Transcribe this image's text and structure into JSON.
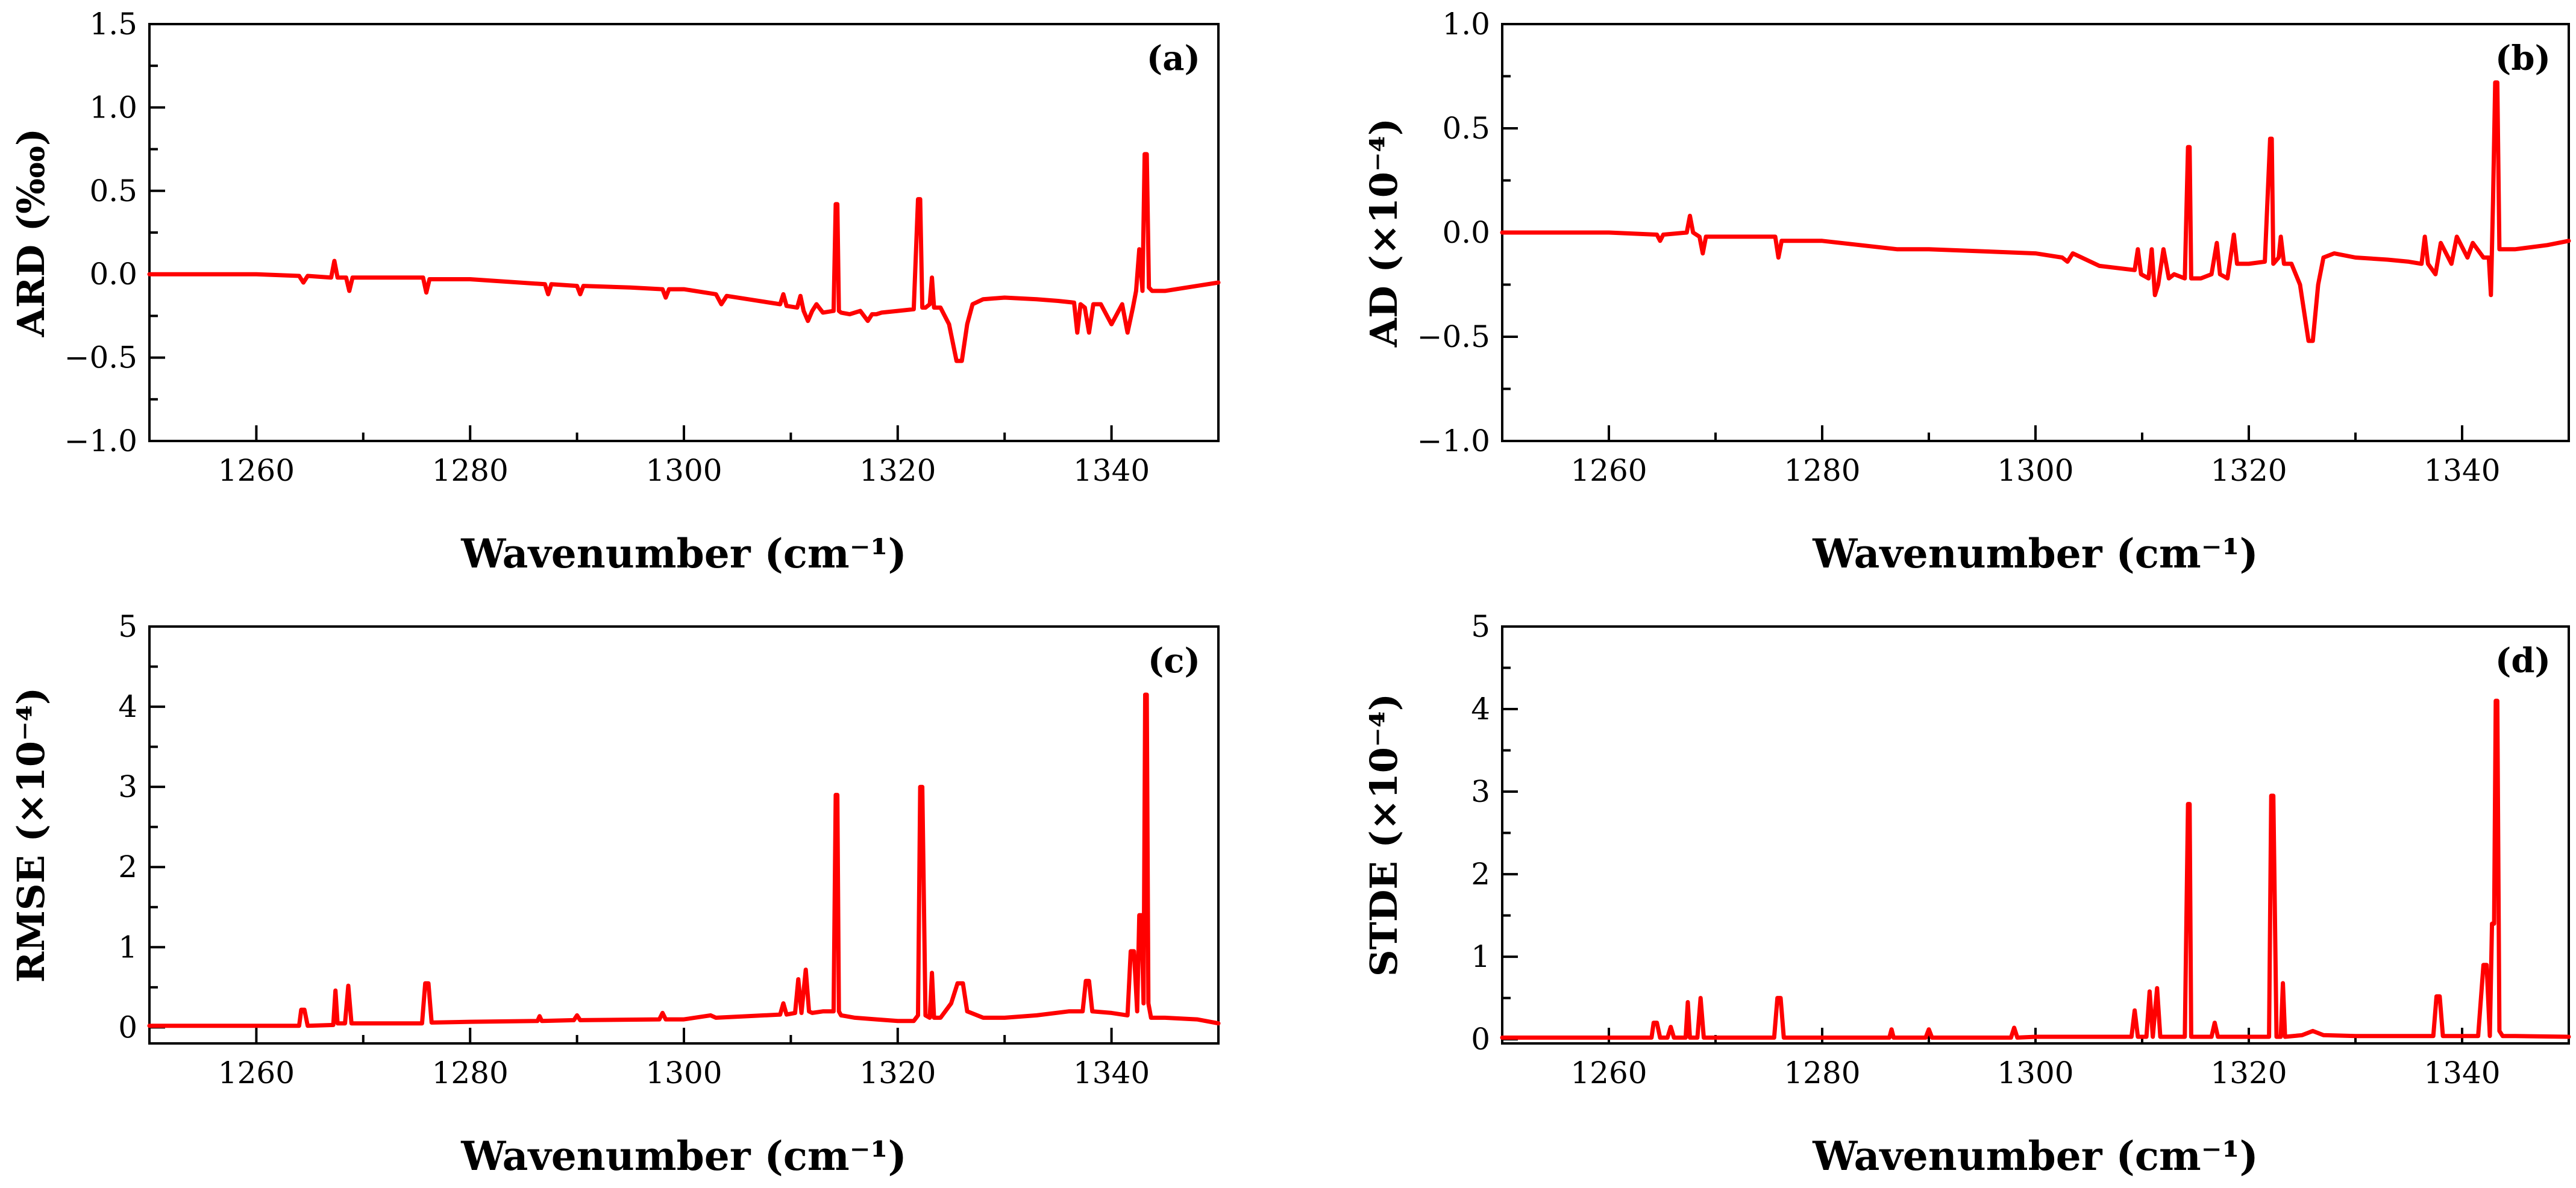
{
  "chart_data": [
    {
      "panel": "(a)",
      "type": "line",
      "ylabel": "ARD (‱)",
      "xlabel": "Wavenumber (cm⁻¹)",
      "xlim": [
        1250,
        1350
      ],
      "ylim": [
        -1.0,
        1.5
      ],
      "xticks": [
        1260,
        1280,
        1300,
        1320,
        1340
      ],
      "xtick_labels": [
        "1260",
        "1280",
        "1300",
        "1320",
        "1340"
      ],
      "yticks": [
        -1.0,
        -0.5,
        0.0,
        0.5,
        1.0,
        1.5
      ],
      "ytick_labels": [
        "−1.0",
        "−0.5",
        "0.0",
        "0.5",
        "1.0",
        "1.5"
      ],
      "color": "#ff0000",
      "series": [
        {
          "name": "ARD",
          "x": [
            1250,
            1260,
            1264,
            1264.4,
            1264.8,
            1267,
            1267.3,
            1267.6,
            1268.4,
            1268.7,
            1269,
            1275.6,
            1275.9,
            1276.2,
            1280,
            1287,
            1287.3,
            1287.6,
            1290,
            1290.3,
            1290.6,
            1295,
            1298,
            1298.3,
            1298.6,
            1300,
            1303,
            1303.5,
            1304,
            1306,
            1309,
            1309.3,
            1309.6,
            1310.6,
            1310.9,
            1311.2,
            1311.6,
            1312,
            1312.4,
            1313,
            1314,
            1314.2,
            1314.35,
            1314.5,
            1314.7,
            1315.5,
            1316.5,
            1317.2,
            1317.6,
            1318,
            1318.5,
            1320,
            1321.5,
            1321.9,
            1322.1,
            1322.3,
            1322.6,
            1323,
            1323.2,
            1323.4,
            1324,
            1324.8,
            1325.5,
            1326,
            1326.5,
            1327,
            1328,
            1330,
            1333,
            1335,
            1336.5,
            1336.8,
            1337.1,
            1337.5,
            1337.9,
            1338.3,
            1339,
            1340,
            1341,
            1341.5,
            1342,
            1342.3,
            1342.6,
            1342.9,
            1343.1,
            1343.3,
            1343.5,
            1343.8,
            1345,
            1348,
            1350
          ],
          "y": [
            0.0,
            0.0,
            -0.01,
            -0.05,
            -0.01,
            -0.02,
            0.08,
            -0.02,
            -0.02,
            -0.1,
            -0.02,
            -0.02,
            -0.11,
            -0.03,
            -0.03,
            -0.06,
            -0.12,
            -0.06,
            -0.07,
            -0.12,
            -0.07,
            -0.08,
            -0.09,
            -0.14,
            -0.09,
            -0.09,
            -0.12,
            -0.18,
            -0.13,
            -0.15,
            -0.18,
            -0.12,
            -0.19,
            -0.2,
            -0.13,
            -0.22,
            -0.28,
            -0.22,
            -0.18,
            -0.23,
            -0.22,
            0.42,
            0.42,
            -0.22,
            -0.23,
            -0.24,
            -0.22,
            -0.28,
            -0.24,
            -0.24,
            -0.23,
            -0.22,
            -0.21,
            0.45,
            0.45,
            -0.2,
            -0.2,
            -0.18,
            -0.02,
            -0.2,
            -0.2,
            -0.3,
            -0.52,
            -0.52,
            -0.3,
            -0.18,
            -0.15,
            -0.14,
            -0.15,
            -0.16,
            -0.17,
            -0.35,
            -0.18,
            -0.2,
            -0.35,
            -0.18,
            -0.18,
            -0.3,
            -0.18,
            -0.35,
            -0.2,
            -0.1,
            0.15,
            -0.1,
            0.72,
            0.72,
            -0.08,
            -0.1,
            -0.1,
            -0.07,
            -0.05
          ]
        }
      ]
    },
    {
      "panel": "(b)",
      "type": "line",
      "ylabel": "AD (×10⁻⁴)",
      "xlabel": "Wavenumber (cm⁻¹)",
      "xlim": [
        1250,
        1350
      ],
      "ylim": [
        -1.0,
        1.0
      ],
      "xticks": [
        1260,
        1280,
        1300,
        1320,
        1340
      ],
      "xtick_labels": [
        "1260",
        "1280",
        "1300",
        "1320",
        "1340"
      ],
      "yticks": [
        -1.0,
        -0.5,
        0.0,
        0.5,
        1.0
      ],
      "ytick_labels": [
        "−1.0",
        "−0.5",
        "0.0",
        "0.5",
        "1.0"
      ],
      "color": "#ff0000",
      "series": [
        {
          "name": "AD",
          "x": [
            1250,
            1260,
            1264.5,
            1264.8,
            1265.1,
            1267.3,
            1267.6,
            1267.9,
            1268.5,
            1268.8,
            1269.1,
            1275.6,
            1275.9,
            1276.2,
            1280,
            1287,
            1290,
            1295,
            1300,
            1302.5,
            1303,
            1303.5,
            1306,
            1309.3,
            1309.6,
            1309.9,
            1310.6,
            1310.9,
            1311.2,
            1311.5,
            1312,
            1312.5,
            1313,
            1314,
            1314.3,
            1314.45,
            1314.6,
            1315.5,
            1316.5,
            1317,
            1317.3,
            1318,
            1318.6,
            1318.9,
            1320,
            1321.5,
            1322,
            1322.15,
            1322.3,
            1322.8,
            1323,
            1323.3,
            1324,
            1324.8,
            1325.6,
            1326,
            1326.5,
            1327,
            1328,
            1330,
            1333,
            1335,
            1336.2,
            1336.5,
            1336.8,
            1337.5,
            1338,
            1339,
            1339.5,
            1340.5,
            1341,
            1342,
            1342.5,
            1342.7,
            1342.9,
            1343.1,
            1343.3,
            1343.5,
            1343.8,
            1345,
            1348,
            1350
          ],
          "y": [
            0.0,
            0.0,
            -0.01,
            -0.04,
            -0.01,
            0.0,
            0.08,
            0.0,
            -0.02,
            -0.1,
            -0.02,
            -0.02,
            -0.12,
            -0.04,
            -0.04,
            -0.08,
            -0.08,
            -0.09,
            -0.1,
            -0.12,
            -0.14,
            -0.1,
            -0.16,
            -0.18,
            -0.08,
            -0.2,
            -0.22,
            -0.08,
            -0.3,
            -0.25,
            -0.08,
            -0.22,
            -0.2,
            -0.22,
            0.41,
            0.41,
            -0.22,
            -0.22,
            -0.2,
            -0.05,
            -0.2,
            -0.22,
            -0.01,
            -0.15,
            -0.15,
            -0.14,
            0.45,
            0.45,
            -0.15,
            -0.12,
            -0.02,
            -0.15,
            -0.15,
            -0.25,
            -0.52,
            -0.52,
            -0.25,
            -0.12,
            -0.1,
            -0.12,
            -0.13,
            -0.14,
            -0.15,
            -0.02,
            -0.15,
            -0.2,
            -0.05,
            -0.15,
            -0.02,
            -0.12,
            -0.05,
            -0.12,
            -0.12,
            -0.3,
            0.15,
            0.72,
            0.72,
            -0.08,
            -0.08,
            -0.08,
            -0.06,
            -0.04
          ]
        }
      ]
    },
    {
      "panel": "(c)",
      "type": "line",
      "ylabel": "RMSE (×10⁻⁴)",
      "xlabel": "Wavenumber (cm⁻¹)",
      "xlim": [
        1250,
        1350
      ],
      "ylim": [
        -0.2,
        5
      ],
      "xticks": [
        1260,
        1280,
        1300,
        1320,
        1340
      ],
      "xtick_labels": [
        "1260",
        "1280",
        "1300",
        "1320",
        "1340"
      ],
      "yticks": [
        0,
        1,
        2,
        3,
        4,
        5
      ],
      "ytick_labels": [
        "0",
        "1",
        "2",
        "3",
        "4",
        "5"
      ],
      "color": "#ff0000",
      "series": [
        {
          "name": "RMSE",
          "x": [
            1250,
            1264,
            1264.2,
            1264.5,
            1264.8,
            1267.2,
            1267.4,
            1267.6,
            1268.3,
            1268.6,
            1268.9,
            1275.5,
            1275.8,
            1276.1,
            1276.4,
            1280,
            1286.3,
            1286.5,
            1286.7,
            1289.7,
            1290,
            1290.3,
            1297.7,
            1298,
            1298.3,
            1300,
            1302.5,
            1303,
            1306,
            1309,
            1309.3,
            1309.6,
            1310.4,
            1310.7,
            1311,
            1311.4,
            1311.7,
            1312,
            1313,
            1314,
            1314.2,
            1314.35,
            1314.5,
            1314.7,
            1316,
            1318,
            1320,
            1321.5,
            1321.9,
            1322.1,
            1322.3,
            1322.6,
            1323,
            1323.2,
            1323.4,
            1324,
            1325,
            1325.6,
            1326.1,
            1326.5,
            1328,
            1330,
            1333,
            1336,
            1337.3,
            1337.6,
            1337.9,
            1338.2,
            1340,
            1341.5,
            1341.8,
            1342.1,
            1342.4,
            1342.6,
            1342.8,
            1343,
            1343.15,
            1343.3,
            1343.45,
            1343.7,
            1345,
            1348,
            1350
          ],
          "y": [
            0.02,
            0.02,
            0.22,
            0.22,
            0.02,
            0.03,
            0.46,
            0.05,
            0.05,
            0.52,
            0.05,
            0.05,
            0.55,
            0.55,
            0.06,
            0.07,
            0.08,
            0.14,
            0.08,
            0.09,
            0.15,
            0.09,
            0.1,
            0.18,
            0.1,
            0.1,
            0.15,
            0.12,
            0.14,
            0.16,
            0.3,
            0.16,
            0.18,
            0.6,
            0.18,
            0.72,
            0.2,
            0.18,
            0.2,
            0.2,
            2.9,
            2.9,
            0.2,
            0.15,
            0.12,
            0.1,
            0.08,
            0.08,
            0.15,
            3.0,
            3.0,
            0.15,
            0.12,
            0.68,
            0.12,
            0.12,
            0.3,
            0.55,
            0.55,
            0.2,
            0.12,
            0.12,
            0.15,
            0.2,
            0.2,
            0.58,
            0.58,
            0.2,
            0.18,
            0.15,
            0.95,
            0.95,
            0.2,
            1.4,
            1.4,
            0.3,
            4.15,
            4.15,
            0.3,
            0.12,
            0.12,
            0.1,
            0.05
          ]
        }
      ]
    },
    {
      "panel": "(d)",
      "type": "line",
      "ylabel": "STDE (×10⁻⁴)",
      "xlabel": "Wavenumber (cm⁻¹)",
      "xlim": [
        1250,
        1350
      ],
      "ylim": [
        -0.05,
        5
      ],
      "xticks": [
        1260,
        1280,
        1300,
        1320,
        1340
      ],
      "xtick_labels": [
        "1260",
        "1280",
        "1300",
        "1320",
        "1340"
      ],
      "yticks": [
        0,
        1,
        2,
        3,
        4,
        5
      ],
      "ytick_labels": [
        "0",
        "1",
        "2",
        "3",
        "4",
        "5"
      ],
      "color": "#ff0000",
      "series": [
        {
          "name": "STDE",
          "x": [
            1250,
            1264,
            1264.2,
            1264.5,
            1264.8,
            1265.5,
            1265.8,
            1266.1,
            1267.2,
            1267.4,
            1267.6,
            1268.3,
            1268.6,
            1268.9,
            1275.5,
            1275.8,
            1276.1,
            1276.4,
            1280,
            1286.3,
            1286.5,
            1286.7,
            1289.7,
            1290,
            1290.3,
            1297.7,
            1298,
            1298.3,
            1300,
            1305,
            1309,
            1309.3,
            1309.6,
            1310.4,
            1310.7,
            1311,
            1311.4,
            1311.7,
            1312,
            1314,
            1314.3,
            1314.45,
            1314.6,
            1316.5,
            1316.8,
            1317.1,
            1320,
            1321.9,
            1322.1,
            1322.3,
            1322.6,
            1323,
            1323.2,
            1323.4,
            1325,
            1326,
            1327,
            1330,
            1337.3,
            1337.6,
            1337.9,
            1338.2,
            1341.5,
            1342,
            1342.3,
            1342.6,
            1342.8,
            1343,
            1343.15,
            1343.3,
            1343.5,
            1343.8,
            1345,
            1350
          ],
          "y": [
            0.02,
            0.02,
            0.2,
            0.2,
            0.02,
            0.02,
            0.15,
            0.02,
            0.02,
            0.45,
            0.02,
            0.02,
            0.5,
            0.02,
            0.02,
            0.5,
            0.5,
            0.02,
            0.02,
            0.02,
            0.12,
            0.02,
            0.02,
            0.12,
            0.02,
            0.02,
            0.14,
            0.02,
            0.03,
            0.03,
            0.03,
            0.35,
            0.03,
            0.03,
            0.58,
            0.03,
            0.62,
            0.03,
            0.03,
            0.03,
            2.85,
            2.85,
            0.03,
            0.03,
            0.2,
            0.03,
            0.03,
            0.03,
            2.95,
            2.95,
            0.03,
            0.03,
            0.68,
            0.03,
            0.05,
            0.1,
            0.05,
            0.04,
            0.04,
            0.52,
            0.52,
            0.04,
            0.04,
            0.9,
            0.9,
            0.04,
            1.4,
            1.4,
            4.1,
            4.1,
            0.1,
            0.04,
            0.04,
            0.03
          ]
        }
      ]
    }
  ]
}
